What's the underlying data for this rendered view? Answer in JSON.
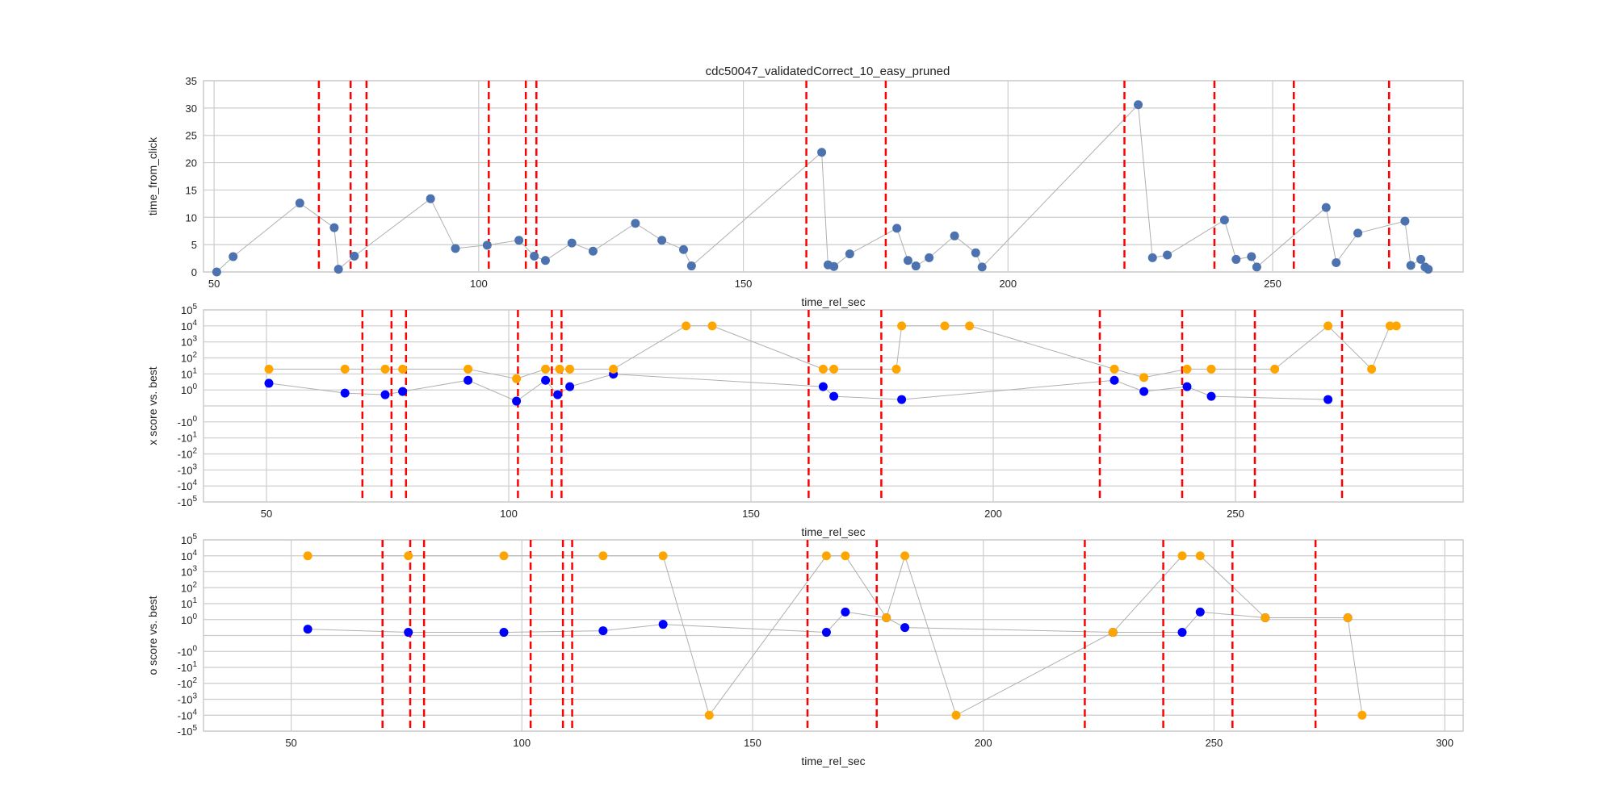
{
  "figure": {
    "title": "cdc50047_validatedCorrect_10_easy_pruned"
  },
  "colors": {
    "series_main": "#4c72b0",
    "series_x_blue": "#0000ff",
    "series_orange": "#ffa500",
    "vline": "#ff0000",
    "grid": "#cccccc",
    "connector": "#b0b0b0"
  },
  "chart_data": [
    {
      "type": "scatter",
      "title": "cdc50047_validatedCorrect_10_easy_pruned",
      "xlabel": "time_rel_sec",
      "ylabel": "time_from_click",
      "xlim": [
        48,
        286
      ],
      "ylim": [
        0,
        35
      ],
      "xticks": [
        50,
        100,
        150,
        200,
        250
      ],
      "yticks": [
        0,
        5,
        10,
        15,
        20,
        25,
        30,
        35
      ],
      "grid": true,
      "vlines": [
        69.8,
        75.8,
        78.8,
        101.9,
        108.9,
        110.9,
        161.9,
        176.9,
        222.0,
        239.0,
        254.0,
        272.0
      ],
      "series": [
        {
          "color": "#4c72b0",
          "x": [
            50.5,
            53.6,
            66.2,
            72.7,
            73.5,
            76.5,
            90.9,
            95.6,
            101.6,
            107.6,
            110.5,
            112.6,
            117.6,
            121.6,
            129.6,
            134.6,
            138.7,
            140.2,
            164.8,
            166.0,
            167.1,
            170.1,
            179.0,
            181.1,
            182.6,
            185.1,
            189.9,
            193.9,
            195.1,
            224.6,
            227.3,
            230.1,
            240.9,
            243.1,
            246.0,
            247.0,
            260.1,
            262.0,
            266.1,
            275.0,
            276.1,
            278.0,
            278.8,
            279.4
          ],
          "y": [
            0.0,
            2.8,
            12.6,
            8.1,
            0.5,
            2.9,
            13.4,
            4.3,
            4.9,
            5.8,
            2.9,
            2.1,
            5.3,
            3.8,
            8.9,
            5.8,
            4.1,
            1.1,
            21.9,
            1.3,
            1.0,
            3.3,
            8.0,
            2.1,
            1.1,
            2.6,
            6.6,
            3.5,
            0.9,
            30.6,
            2.6,
            3.1,
            9.5,
            2.3,
            2.8,
            0.9,
            11.8,
            1.7,
            7.1,
            9.3,
            1.2,
            2.3,
            0.9,
            0.5
          ]
        }
      ]
    },
    {
      "type": "scatter",
      "xlabel": "time_rel_sec",
      "ylabel": "x score vs. best",
      "yscale": "symlog",
      "xlim": [
        37,
        297
      ],
      "ylim": [
        -100000,
        100000
      ],
      "xticks": [
        50,
        100,
        150,
        200,
        250
      ],
      "yticks": [
        -100000,
        -10000,
        -1000,
        -100,
        -10,
        -1,
        1,
        10,
        100,
        1000,
        10000,
        100000
      ],
      "ytick_labels": [
        "-10^5",
        "-10^4",
        "-10^3",
        "-10^2",
        "-10^1",
        "-10^0",
        "10^0",
        "10^1",
        "10^2",
        "10^3",
        "10^4",
        "10^5"
      ],
      "grid": true,
      "vlines": [
        69.8,
        75.8,
        78.8,
        101.9,
        108.9,
        110.9,
        161.9,
        176.9,
        222.0,
        239.0,
        254.0,
        272.0
      ],
      "series": [
        {
          "color": "#0000ff",
          "x": [
            50.5,
            66.2,
            74.5,
            78.1,
            91.6,
            101.6,
            107.6,
            110.1,
            112.6,
            121.6,
            164.9,
            167.1,
            181.1,
            225.0,
            231.1,
            240.0,
            245.0,
            269.1
          ],
          "y": [
            2.6,
            0.8,
            0.7,
            0.9,
            4.0,
            0.3,
            4.0,
            0.7,
            1.6,
            9.7,
            1.6,
            0.6,
            0.4,
            4.0,
            0.9,
            1.6,
            0.6,
            0.4
          ]
        },
        {
          "color": "#ffa500",
          "x": [
            50.5,
            66.2,
            74.5,
            78.1,
            91.6,
            101.6,
            107.6,
            110.5,
            112.6,
            121.6,
            136.6,
            142.0,
            164.9,
            167.1,
            180.0,
            181.1,
            190.0,
            195.1,
            225.0,
            231.1,
            240.0,
            245.0,
            258.1,
            269.1,
            278.1,
            281.9,
            283.2
          ],
          "y": [
            20,
            20,
            20,
            20,
            20,
            5,
            20,
            20,
            20,
            20,
            10000,
            10000,
            20,
            20,
            20,
            10000,
            10000,
            10000,
            20,
            6,
            20,
            20,
            20,
            10000,
            20,
            10000,
            10000
          ]
        }
      ]
    },
    {
      "type": "scatter",
      "xlabel": "time_rel_sec",
      "ylabel": "o score vs. best",
      "yscale": "symlog",
      "xlim": [
        31,
        304
      ],
      "ylim": [
        -100000,
        100000
      ],
      "xticks": [
        50,
        100,
        150,
        200,
        250,
        300
      ],
      "yticks": [
        -100000,
        -10000,
        -1000,
        -100,
        -10,
        -1,
        1,
        10,
        100,
        1000,
        10000,
        100000
      ],
      "ytick_labels": [
        "-10^5",
        "-10^4",
        "-10^3",
        "-10^2",
        "-10^1",
        "-10^0",
        "10^0",
        "10^1",
        "10^2",
        "10^3",
        "10^4",
        "10^5"
      ],
      "grid": true,
      "vlines": [
        69.8,
        75.8,
        78.8,
        101.9,
        108.9,
        110.9,
        161.9,
        176.9,
        222.0,
        239.0,
        254.0,
        272.0
      ],
      "series": [
        {
          "color": "#0000ff",
          "x": [
            53.6,
            75.4,
            96.1,
            117.6,
            130.6,
            166.0,
            170.1,
            179.0,
            183.0,
            228.1,
            243.1,
            247.0,
            261.1,
            279.0
          ],
          "y": [
            0.4,
            0.2,
            0.2,
            0.3,
            0.7,
            0.2,
            3.0,
            1.3,
            0.5,
            0.2,
            0.2,
            3.0,
            1.3,
            1.3
          ]
        },
        {
          "color": "#ffa500",
          "x": [
            53.6,
            75.4,
            96.1,
            117.6,
            130.6,
            140.6,
            166.0,
            170.1,
            179.0,
            183.0,
            194.1,
            228.1,
            243.1,
            247.0,
            261.1,
            279.0,
            282.1
          ],
          "y": [
            10000,
            10000,
            10000,
            10000,
            10000,
            -10000,
            10000,
            10000,
            1.3,
            10000,
            -10000,
            0.2,
            10000,
            10000,
            1.3,
            1.3,
            -10000
          ]
        }
      ]
    }
  ]
}
